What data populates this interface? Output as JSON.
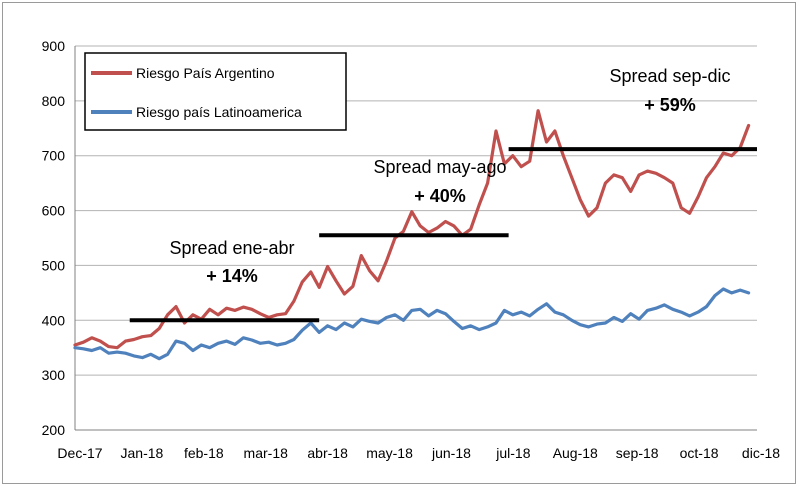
{
  "chart_data": {
    "type": "line",
    "title": "",
    "xlabel": "",
    "ylabel": "",
    "ylim": [
      200,
      900
    ],
    "yticks": [
      200,
      300,
      400,
      500,
      600,
      700,
      800,
      900
    ],
    "x_tick_labels": [
      "Dec-17",
      "Jan-18",
      "feb-18",
      "mar-18",
      "abr-18",
      "may-18",
      "jun-18",
      "jul-18",
      "Aug-18",
      "sep-18",
      "oct-18",
      "dic-18"
    ],
    "grid": "horizontal",
    "legend_position": "top-left",
    "colors": {
      "argentina": "#c0504d",
      "latam": "#4f81bd",
      "spread_bar": "#000000",
      "gridline": "#b3b3b3"
    },
    "series": [
      {
        "name": "Riesgo País Argentino",
        "points": [
          [
            0,
            355
          ],
          [
            1,
            360
          ],
          [
            2,
            368
          ],
          [
            3,
            362
          ],
          [
            4,
            352
          ],
          [
            5,
            350
          ],
          [
            6,
            362
          ],
          [
            7,
            365
          ],
          [
            8,
            370
          ],
          [
            9,
            372
          ],
          [
            10,
            385
          ],
          [
            11,
            410
          ],
          [
            12,
            425
          ],
          [
            13,
            395
          ],
          [
            14,
            410
          ],
          [
            15,
            402
          ],
          [
            16,
            420
          ],
          [
            17,
            410
          ],
          [
            18,
            422
          ],
          [
            19,
            418
          ],
          [
            20,
            424
          ],
          [
            21,
            420
          ],
          [
            22,
            412
          ],
          [
            23,
            405
          ],
          [
            24,
            410
          ],
          [
            25,
            412
          ],
          [
            26,
            435
          ],
          [
            27,
            470
          ],
          [
            28,
            488
          ],
          [
            29,
            460
          ],
          [
            30,
            498
          ],
          [
            31,
            472
          ],
          [
            32,
            448
          ],
          [
            33,
            462
          ],
          [
            34,
            518
          ],
          [
            35,
            490
          ],
          [
            36,
            472
          ],
          [
            37,
            508
          ],
          [
            38,
            550
          ],
          [
            39,
            562
          ],
          [
            40,
            598
          ],
          [
            41,
            572
          ],
          [
            42,
            560
          ],
          [
            43,
            568
          ],
          [
            44,
            580
          ],
          [
            45,
            572
          ],
          [
            46,
            555
          ],
          [
            47,
            566
          ],
          [
            48,
            610
          ],
          [
            49,
            650
          ],
          [
            50,
            745
          ],
          [
            51,
            685
          ],
          [
            52,
            700
          ],
          [
            53,
            680
          ],
          [
            54,
            690
          ],
          [
            55,
            782
          ],
          [
            56,
            725
          ],
          [
            57,
            745
          ],
          [
            58,
            700
          ],
          [
            59,
            660
          ],
          [
            60,
            620
          ],
          [
            61,
            590
          ],
          [
            62,
            605
          ],
          [
            63,
            650
          ],
          [
            64,
            665
          ],
          [
            65,
            660
          ],
          [
            66,
            635
          ],
          [
            67,
            665
          ],
          [
            68,
            672
          ],
          [
            69,
            668
          ],
          [
            70,
            660
          ],
          [
            71,
            650
          ],
          [
            72,
            605
          ],
          [
            73,
            595
          ],
          [
            74,
            625
          ],
          [
            75,
            660
          ],
          [
            76,
            680
          ],
          [
            77,
            705
          ],
          [
            78,
            700
          ],
          [
            79,
            715
          ],
          [
            80,
            755
          ]
        ]
      },
      {
        "name": "Riesgo país Latinoamerica",
        "points": [
          [
            0,
            350
          ],
          [
            1,
            348
          ],
          [
            2,
            345
          ],
          [
            3,
            350
          ],
          [
            4,
            340
          ],
          [
            5,
            342
          ],
          [
            6,
            340
          ],
          [
            7,
            335
          ],
          [
            8,
            332
          ],
          [
            9,
            338
          ],
          [
            10,
            330
          ],
          [
            11,
            338
          ],
          [
            12,
            362
          ],
          [
            13,
            358
          ],
          [
            14,
            345
          ],
          [
            15,
            355
          ],
          [
            16,
            350
          ],
          [
            17,
            358
          ],
          [
            18,
            362
          ],
          [
            19,
            356
          ],
          [
            20,
            368
          ],
          [
            21,
            364
          ],
          [
            22,
            358
          ],
          [
            23,
            360
          ],
          [
            24,
            355
          ],
          [
            25,
            358
          ],
          [
            26,
            365
          ],
          [
            27,
            382
          ],
          [
            28,
            395
          ],
          [
            29,
            378
          ],
          [
            30,
            390
          ],
          [
            31,
            383
          ],
          [
            32,
            395
          ],
          [
            33,
            388
          ],
          [
            34,
            402
          ],
          [
            35,
            398
          ],
          [
            36,
            395
          ],
          [
            37,
            405
          ],
          [
            38,
            410
          ],
          [
            39,
            400
          ],
          [
            40,
            418
          ],
          [
            41,
            420
          ],
          [
            42,
            408
          ],
          [
            43,
            418
          ],
          [
            44,
            412
          ],
          [
            45,
            398
          ],
          [
            46,
            385
          ],
          [
            47,
            390
          ],
          [
            48,
            383
          ],
          [
            49,
            388
          ],
          [
            50,
            395
          ],
          [
            51,
            418
          ],
          [
            52,
            410
          ],
          [
            53,
            415
          ],
          [
            54,
            408
          ],
          [
            55,
            420
          ],
          [
            56,
            430
          ],
          [
            57,
            415
          ],
          [
            58,
            410
          ],
          [
            59,
            400
          ],
          [
            60,
            392
          ],
          [
            61,
            388
          ],
          [
            62,
            393
          ],
          [
            63,
            395
          ],
          [
            64,
            405
          ],
          [
            65,
            398
          ],
          [
            66,
            412
          ],
          [
            67,
            402
          ],
          [
            68,
            418
          ],
          [
            69,
            422
          ],
          [
            70,
            428
          ],
          [
            71,
            420
          ],
          [
            72,
            415
          ],
          [
            73,
            408
          ],
          [
            74,
            415
          ],
          [
            75,
            425
          ],
          [
            76,
            445
          ],
          [
            77,
            457
          ],
          [
            78,
            450
          ],
          [
            79,
            455
          ],
          [
            80,
            450
          ]
        ]
      }
    ],
    "spread_levels": [
      {
        "x_start": 6.5,
        "x_end": 29,
        "y": 400
      },
      {
        "x_start": 29,
        "x_end": 51.5,
        "y": 555
      },
      {
        "x_start": 51.5,
        "x_end": 81,
        "y": 712
      }
    ],
    "annotations": [
      {
        "label": "Spread ene-abr",
        "value": "+ 14%"
      },
      {
        "label": "Spread may-ago",
        "value": "+ 40%"
      },
      {
        "label": "Spread sep-dic",
        "value": "+ 59%"
      }
    ]
  }
}
